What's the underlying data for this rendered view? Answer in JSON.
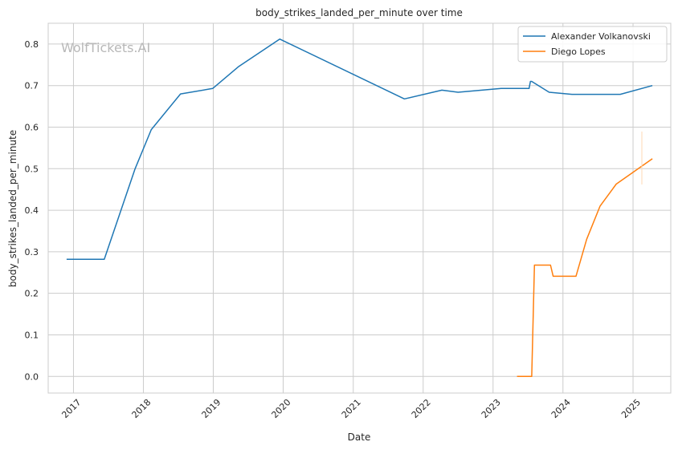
{
  "chart_data": {
    "type": "line",
    "title": "body_strikes_landed_per_minute over time",
    "xlabel": "Date",
    "ylabel": "body_strikes_landed_per_minute",
    "watermark": "WolfTickets.AI",
    "xlim": [
      "2016-08-22",
      "2025-07-17"
    ],
    "ylim": [
      -0.04,
      0.85
    ],
    "x_ticks": [
      {
        "date": "2017-01-01",
        "label": "2017"
      },
      {
        "date": "2018-01-01",
        "label": "2018"
      },
      {
        "date": "2019-01-01",
        "label": "2019"
      },
      {
        "date": "2020-01-01",
        "label": "2020"
      },
      {
        "date": "2021-01-01",
        "label": "2021"
      },
      {
        "date": "2022-01-01",
        "label": "2022"
      },
      {
        "date": "2023-01-01",
        "label": "2023"
      },
      {
        "date": "2024-01-01",
        "label": "2024"
      },
      {
        "date": "2025-01-01",
        "label": "2025"
      }
    ],
    "y_ticks": [
      {
        "value": 0.0,
        "label": "0.0"
      },
      {
        "value": 0.1,
        "label": "0.1"
      },
      {
        "value": 0.2,
        "label": "0.2"
      },
      {
        "value": 0.3,
        "label": "0.3"
      },
      {
        "value": 0.4,
        "label": "0.4"
      },
      {
        "value": 0.5,
        "label": "0.5"
      },
      {
        "value": 0.6,
        "label": "0.6"
      },
      {
        "value": 0.7,
        "label": "0.7"
      },
      {
        "value": 0.8,
        "label": "0.8"
      }
    ],
    "grid": true,
    "legend_position": "top-right",
    "series": [
      {
        "name": "Alexander Volkanovski",
        "color": "#1f77b4",
        "points": [
          {
            "x": "2016-11-26",
            "y": 0.282
          },
          {
            "x": "2017-06-11",
            "y": 0.282
          },
          {
            "x": "2017-11-19",
            "y": 0.5
          },
          {
            "x": "2018-02-11",
            "y": 0.594
          },
          {
            "x": "2018-07-14",
            "y": 0.68
          },
          {
            "x": "2018-12-29",
            "y": 0.693
          },
          {
            "x": "2019-05-11",
            "y": 0.745
          },
          {
            "x": "2019-12-14",
            "y": 0.812
          },
          {
            "x": "2021-09-25",
            "y": 0.668
          },
          {
            "x": "2022-04-09",
            "y": 0.689
          },
          {
            "x": "2022-07-02",
            "y": 0.684
          },
          {
            "x": "2023-02-12",
            "y": 0.693
          },
          {
            "x": "2023-07-08",
            "y": 0.693
          },
          {
            "x": "2023-07-15",
            "y": 0.71
          },
          {
            "x": "2023-07-22",
            "y": 0.71
          },
          {
            "x": "2023-10-21",
            "y": 0.684
          },
          {
            "x": "2024-02-17",
            "y": 0.679
          },
          {
            "x": "2024-10-26",
            "y": 0.679
          },
          {
            "x": "2025-04-12",
            "y": 0.7
          }
        ]
      },
      {
        "name": "Diego Lopes",
        "color": "#ff7f0e",
        "points": [
          {
            "x": "2023-05-06",
            "y": 0.0
          },
          {
            "x": "2023-07-22",
            "y": 0.0
          },
          {
            "x": "2023-08-05",
            "y": 0.268
          },
          {
            "x": "2023-10-28",
            "y": 0.268
          },
          {
            "x": "2023-11-11",
            "y": 0.241
          },
          {
            "x": "2024-03-09",
            "y": 0.241
          },
          {
            "x": "2024-05-04",
            "y": 0.33
          },
          {
            "x": "2024-07-13",
            "y": 0.41
          },
          {
            "x": "2024-10-05",
            "y": 0.463
          },
          {
            "x": "2025-04-12",
            "y": 0.524
          }
        ]
      }
    ]
  }
}
